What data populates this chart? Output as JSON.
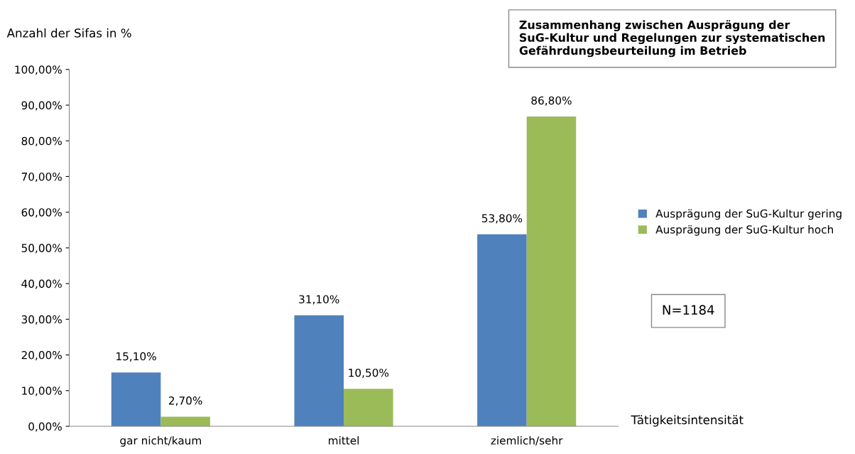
{
  "chart_data": {
    "type": "bar",
    "title": "Zusammenhang zwischen Ausprägung der SuG-Kultur und Regelungen zur systematischen Gefährdungsbeurteilung im Betrieb",
    "ylabel": "Anzahl der Sifas in %",
    "xlabel": "Tätigkeitsintensität",
    "categories": [
      "gar nicht/kaum",
      "mittel",
      "ziemlich/sehr"
    ],
    "series": [
      {
        "name": "Ausprägung der SuG-Kultur gering",
        "color": "#4f81bd",
        "values": [
          15.1,
          31.1,
          53.8
        ],
        "value_labels": [
          "15,10%",
          "31,10%",
          "53,80%"
        ]
      },
      {
        "name": "Ausprägung der SuG-Kultur hoch",
        "color": "#9bbb59",
        "values": [
          2.7,
          10.5,
          86.8
        ],
        "value_labels": [
          "2,70%",
          "10,50%",
          "86,80%"
        ]
      }
    ],
    "ylim": [
      0,
      100
    ],
    "yticks": [
      {
        "value": 0,
        "label": "0,00%"
      },
      {
        "value": 10,
        "label": "10,00%"
      },
      {
        "value": 20,
        "label": "20,00%"
      },
      {
        "value": 30,
        "label": "30,00%"
      },
      {
        "value": 40,
        "label": "40,00%"
      },
      {
        "value": 50,
        "label": "50,00%"
      },
      {
        "value": 60,
        "label": "60,00%"
      },
      {
        "value": 70,
        "label": "70,00%"
      },
      {
        "value": 80,
        "label": "80,00%"
      },
      {
        "value": 90,
        "label": "90,00%"
      },
      {
        "value": 100,
        "label": "100,00%"
      }
    ],
    "annotations": [
      "N=1184"
    ],
    "legend": "right",
    "grid": false
  }
}
